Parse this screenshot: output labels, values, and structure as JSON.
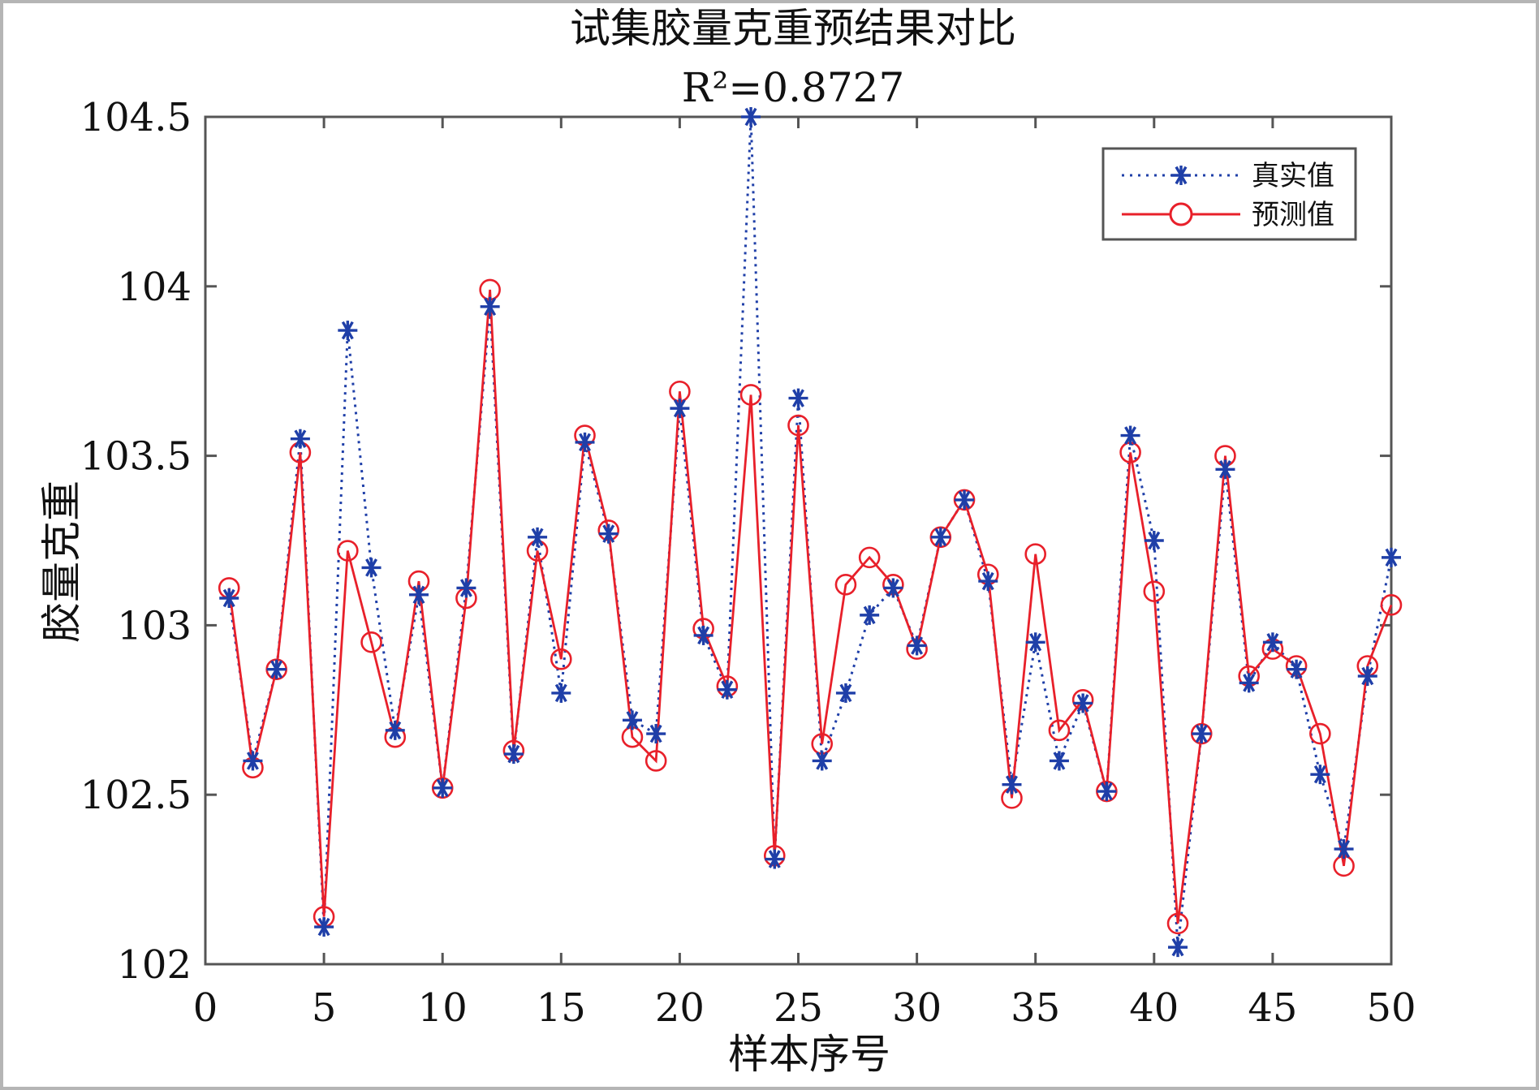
{
  "chart_data": {
    "type": "line",
    "title": "试集胶量克重预结果对比",
    "subtitle": "R²=0.8727",
    "xlabel": "样本序号",
    "ylabel": "胶量克重",
    "xlim": [
      0,
      50
    ],
    "ylim": [
      102,
      104.5
    ],
    "xticks": [
      "0",
      "5",
      "10",
      "15",
      "20",
      "25",
      "30",
      "35",
      "40",
      "45",
      "50"
    ],
    "yticks": [
      "102",
      "102.5",
      "103",
      "103.5",
      "104",
      "104.5"
    ],
    "grid": false,
    "legend_position": "top-right",
    "x": [
      1,
      2,
      3,
      4,
      5,
      6,
      7,
      8,
      9,
      10,
      11,
      12,
      13,
      14,
      15,
      16,
      17,
      18,
      19,
      20,
      21,
      22,
      23,
      24,
      25,
      26,
      27,
      28,
      29,
      30,
      31,
      32,
      33,
      34,
      35,
      36,
      37,
      38,
      39,
      40,
      41,
      42,
      43,
      44,
      45,
      46,
      47,
      48,
      49,
      50
    ],
    "series": [
      {
        "name": "真实值",
        "color": "#1f3fa8",
        "line_style": "dotted",
        "marker": "asterisk",
        "values": [
          103.08,
          102.6,
          102.87,
          103.55,
          102.11,
          103.87,
          103.17,
          102.69,
          103.09,
          102.52,
          103.11,
          103.94,
          102.62,
          103.26,
          102.8,
          103.54,
          103.27,
          102.72,
          102.68,
          103.64,
          102.97,
          102.81,
          104.5,
          102.31,
          103.67,
          102.6,
          102.8,
          103.03,
          103.11,
          102.94,
          103.26,
          103.37,
          103.13,
          102.53,
          102.95,
          102.6,
          102.77,
          102.51,
          103.56,
          103.25,
          102.05,
          102.68,
          103.46,
          102.83,
          102.95,
          102.87,
          102.56,
          102.34,
          102.85,
          103.2
        ]
      },
      {
        "name": "预测值",
        "color": "#e8202a",
        "line_style": "solid",
        "marker": "circle",
        "values": [
          103.11,
          102.58,
          102.87,
          103.51,
          102.14,
          103.22,
          102.95,
          102.67,
          103.13,
          102.52,
          103.08,
          103.99,
          102.63,
          103.22,
          102.9,
          103.56,
          103.28,
          102.67,
          102.6,
          103.69,
          102.99,
          102.82,
          103.68,
          102.32,
          103.59,
          102.65,
          103.12,
          103.2,
          103.12,
          102.93,
          103.26,
          103.37,
          103.15,
          102.49,
          103.21,
          102.69,
          102.78,
          102.51,
          103.51,
          103.1,
          102.12,
          102.68,
          103.5,
          102.85,
          102.93,
          102.88,
          102.68,
          102.29,
          102.88,
          103.06
        ]
      }
    ]
  }
}
